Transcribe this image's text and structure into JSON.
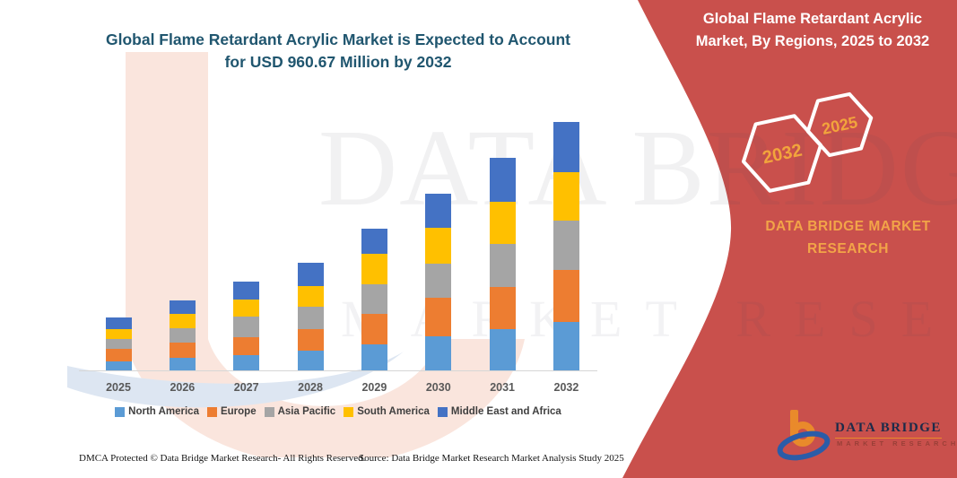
{
  "main_title": {
    "line1": "Global Flame Retardant Acrylic Market is Expected to Account",
    "line2": "for USD 960.67 Million by 2032"
  },
  "banner": {
    "title_line1": "Global Flame Retardant Acrylic",
    "title_line2": "Market, By Regions, 2025 to 2032",
    "hexagons": [
      {
        "year": "2032"
      },
      {
        "year": "2025"
      }
    ],
    "brand_line1": "DATA BRIDGE MARKET",
    "brand_line2": "RESEARCH",
    "background_color": "#C9504C",
    "accent_color": "#F2A43C"
  },
  "watermark": {
    "big_text": "DATA BRIDGE",
    "sub_text": "MARKET RESEARCH"
  },
  "chart_data": {
    "type": "bar",
    "stacked": true,
    "title": "Global Flame Retardant Acrylic Market is Expected to Account for USD 960.67 Million by 2032",
    "unit": "USD Million",
    "ylim": [
      0,
      1000
    ],
    "grid": false,
    "legend_position": "bottom",
    "categories": [
      "2025",
      "2026",
      "2027",
      "2028",
      "2029",
      "2030",
      "2031",
      "2032"
    ],
    "series": [
      {
        "name": "North America",
        "color": "#5B9BD5",
        "values": [
          38,
          52,
          64,
          78,
          104,
          135,
          162,
          190
        ]
      },
      {
        "name": "Europe",
        "color": "#ED7D31",
        "values": [
          48,
          60,
          69,
          86,
          116,
          150,
          164,
          199
        ]
      },
      {
        "name": "Asia Pacific",
        "color": "#A5A5A5",
        "values": [
          40,
          54,
          78,
          85,
          116,
          130,
          166,
          192
        ]
      },
      {
        "name": "South America",
        "color": "#FFC000",
        "values": [
          36,
          55,
          66,
          78,
          116,
          138,
          161,
          187
        ]
      },
      {
        "name": "Middle East and Africa",
        "color": "#4472C4",
        "values": [
          45,
          52,
          69,
          92,
          98,
          131,
          169,
          193
        ]
      }
    ],
    "totals": [
      207,
      273,
      346,
      419,
      550,
      684,
      822,
      961
    ],
    "highlight_total_2032": 960.67
  },
  "footer": {
    "dmca": "DMCA Protected © Data Bridge Market Research-  All Rights Reserved.",
    "source": "Source: Data Bridge Market Research  Market Analysis Study 2025"
  },
  "logo": {
    "wordmark": "DATA BRIDGE",
    "tagline": "MARKET RESEARCH"
  }
}
